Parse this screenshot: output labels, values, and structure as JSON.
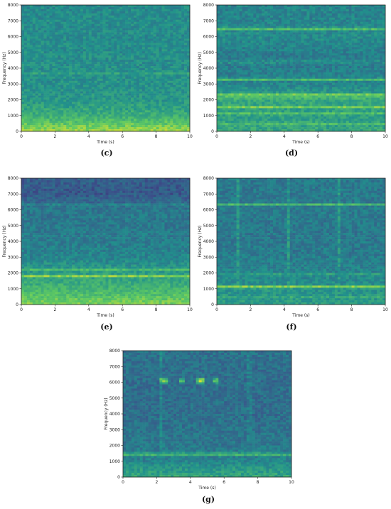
{
  "colors": {
    "low": "#2c6f8e",
    "mid": "#27a885",
    "high": "#e2e418"
  },
  "chart_data": [
    {
      "type": "heatmap",
      "caption": "(c)",
      "xlabel": "Time (s)",
      "ylabel": "Frequency (Hz)",
      "xlim": [
        0,
        10
      ],
      "ylim": [
        0,
        8000
      ],
      "xticks": [
        "0",
        "2",
        "4",
        "6",
        "8",
        "10"
      ],
      "yticks": [
        "0",
        "1000",
        "2000",
        "3000",
        "4000",
        "5000",
        "6000",
        "7000",
        "8000"
      ],
      "base": [
        0.85,
        0.62,
        0.52,
        0.5,
        0.49,
        0.49,
        0.48,
        0.48,
        0.47
      ],
      "hbands": [
        {
          "f": 3700,
          "level": 0.6
        }
      ],
      "vbands": [],
      "blobs": []
    },
    {
      "type": "heatmap",
      "caption": "(d)",
      "xlabel": "Time (s)",
      "ylabel": "Frequency (Hz)",
      "xlim": [
        0,
        10
      ],
      "ylim": [
        0,
        8000
      ],
      "xticks": [
        "0",
        "2",
        "4",
        "6",
        "8",
        "10"
      ],
      "yticks": [
        "0",
        "1000",
        "2000",
        "3000",
        "4000",
        "5000",
        "6000",
        "7000",
        "8000"
      ],
      "base": [
        0.6,
        0.55,
        0.6,
        0.45,
        0.42,
        0.42,
        0.48,
        0.45,
        0.45
      ],
      "hbands": [
        {
          "f": 6500,
          "level": 0.8
        },
        {
          "f": 3300,
          "level": 0.78
        },
        {
          "f": 2300,
          "level": 0.85
        },
        {
          "f": 2150,
          "level": 0.8
        },
        {
          "f": 1550,
          "level": 0.82
        },
        {
          "f": 1100,
          "level": 0.75
        },
        {
          "f": 500,
          "level": 0.72
        },
        {
          "f": 4400,
          "level": 0.55
        }
      ],
      "vbands": [],
      "blobs": []
    },
    {
      "type": "heatmap",
      "caption": "(e)",
      "xlabel": "Time (s)",
      "ylabel": "Frequency (Hz)",
      "xlim": [
        0,
        10
      ],
      "ylim": [
        0,
        8000
      ],
      "xticks": [
        "0",
        "2",
        "4",
        "6",
        "8",
        "10"
      ],
      "yticks": [
        "0",
        "1000",
        "2000",
        "3000",
        "4000",
        "5000",
        "6000",
        "7000",
        "8000"
      ],
      "base": [
        0.8,
        0.65,
        0.55,
        0.45,
        0.42,
        0.4,
        0.4,
        0.28,
        0.3
      ],
      "hbands": [
        {
          "f": 1800,
          "level": 0.82
        },
        {
          "f": 2200,
          "level": 0.68
        },
        {
          "f": 6300,
          "level": 0.48
        }
      ],
      "vbands": [],
      "blobs": []
    },
    {
      "type": "heatmap",
      "caption": "(f)",
      "xlabel": "Time (s)",
      "ylabel": "Frequency (Hz)",
      "xlim": [
        0,
        10
      ],
      "ylim": [
        0,
        8000
      ],
      "xticks": [
        "0",
        "2",
        "4",
        "6",
        "8",
        "10"
      ],
      "yticks": [
        "0",
        "1000",
        "2000",
        "3000",
        "4000",
        "5000",
        "6000",
        "7000",
        "8000"
      ],
      "base": [
        0.55,
        0.5,
        0.45,
        0.42,
        0.4,
        0.4,
        0.42,
        0.4,
        0.4
      ],
      "hbands": [
        {
          "f": 1100,
          "level": 0.95
        },
        {
          "f": 6350,
          "level": 0.72
        },
        {
          "f": 1900,
          "level": 0.6
        },
        {
          "f": 500,
          "level": 0.62
        }
      ],
      "vbands": [
        {
          "t": 1.3,
          "level": 0.62
        },
        {
          "t": 2.8,
          "level": 0.5
        },
        {
          "t": 4.3,
          "level": 0.62
        },
        {
          "t": 5.8,
          "level": 0.5
        },
        {
          "t": 7.3,
          "level": 0.62
        },
        {
          "t": 8.8,
          "level": 0.5
        }
      ],
      "blobs": []
    },
    {
      "type": "heatmap",
      "caption": "(g)",
      "xlabel": "Time (s)",
      "ylabel": "Frequency (Hz)",
      "xlim": [
        0,
        10
      ],
      "ylim": [
        0,
        8000
      ],
      "xticks": [
        "0",
        "2",
        "4",
        "6",
        "8",
        "10"
      ],
      "yticks": [
        "0",
        "1000",
        "2000",
        "3000",
        "4000",
        "5000",
        "6000",
        "7000",
        "8000"
      ],
      "base": [
        0.6,
        0.45,
        0.4,
        0.38,
        0.36,
        0.36,
        0.36,
        0.36,
        0.38
      ],
      "hbands": [
        {
          "f": 1450,
          "level": 0.82
        }
      ],
      "vbands": [
        {
          "t": 2.3,
          "level": 0.55
        },
        {
          "t": 7.5,
          "level": 0.58
        },
        {
          "t": 4.5,
          "level": 0.45
        }
      ],
      "blobs": [
        {
          "t": 2.4,
          "f": 6100,
          "level": 0.95
        },
        {
          "t": 3.5,
          "f": 6100,
          "level": 0.75
        },
        {
          "t": 4.6,
          "f": 6100,
          "level": 0.95
        },
        {
          "t": 5.5,
          "f": 6100,
          "level": 0.8
        }
      ]
    }
  ]
}
